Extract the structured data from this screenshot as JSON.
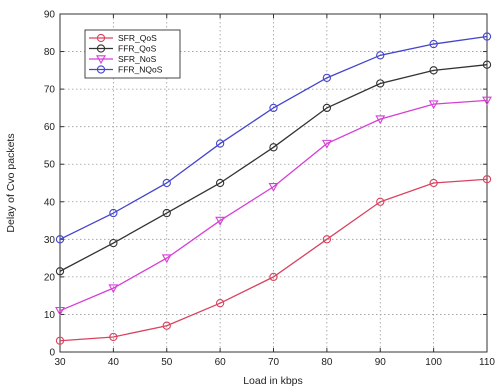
{
  "chart_data": {
    "type": "line",
    "title": "",
    "xlabel": "Load in kbps",
    "ylabel": "Delay of  Cvo packets",
    "x": [
      30,
      40,
      50,
      60,
      70,
      80,
      90,
      100,
      110
    ],
    "xlim": [
      30,
      110
    ],
    "ylim": [
      0,
      90
    ],
    "xticks": [
      30,
      40,
      50,
      60,
      70,
      80,
      90,
      100,
      110
    ],
    "yticks": [
      0,
      10,
      20,
      30,
      40,
      50,
      60,
      70,
      80,
      90
    ],
    "grid": true,
    "legend_position": "top-left",
    "series": [
      {
        "name": "SFR_QoS",
        "color": "#d9435f",
        "marker": "circle",
        "values": [
          3,
          4,
          7,
          13,
          20,
          30,
          40,
          45,
          46
        ]
      },
      {
        "name": "FFR_QoS",
        "color": "#333333",
        "marker": "circle",
        "values": [
          21.5,
          29,
          37,
          45,
          54.5,
          65,
          71.5,
          75,
          76.5
        ]
      },
      {
        "name": "SFR_NoS",
        "color": "#d63fd6",
        "marker": "triangle-down",
        "values": [
          11,
          17,
          25,
          35,
          44,
          55.5,
          62,
          66,
          67
        ]
      },
      {
        "name": "FFR_NQoS",
        "color": "#4444cc",
        "marker": "circle",
        "values": [
          30,
          37,
          45,
          55.5,
          65,
          73,
          79,
          82,
          84
        ]
      }
    ]
  }
}
